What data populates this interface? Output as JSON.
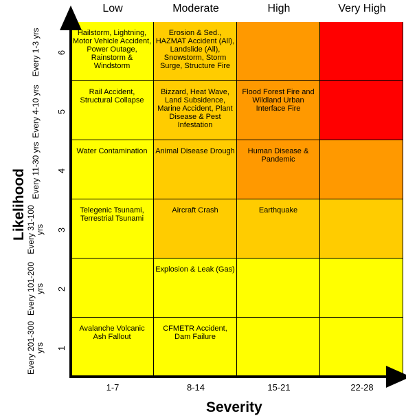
{
  "severity": {
    "title": "Severity",
    "levels": [
      "Low",
      "Moderate",
      "High",
      "Very High"
    ],
    "ranges": [
      "1-7",
      "8-14",
      "15-21",
      "22-28"
    ]
  },
  "likelihood": {
    "title": "Likelihood",
    "rows": [
      {
        "level": "6",
        "frequency": "Every 1-3 yrs"
      },
      {
        "level": "5",
        "frequency": "Every 4-10 yrs"
      },
      {
        "level": "4",
        "frequency": "Every 11-30 yrs"
      },
      {
        "level": "3",
        "frequency": "Every 31-100 yrs"
      },
      {
        "level": "2",
        "frequency": "Every 101-200 yrs"
      },
      {
        "level": "1",
        "frequency": "Every 201-300 yrs"
      }
    ]
  },
  "cells": [
    [
      "Hailstorm, Lightning, Motor Vehicle Accident, Power Outage, Rainstorm & Windstorm",
      "Erosion & Sed., HAZMAT Accident (All), Landslide (All), Snowstorm, Storm Surge, Structure Fire",
      "",
      ""
    ],
    [
      "Rail Accident, Structural Collapse",
      "Bizzard, Heat Wave, Land Subsidence, Marine Accident, Plant Disease & Pest Infestation",
      "Flood Forest Fire and Wildland Urban Interface Fire",
      ""
    ],
    [
      "Water Contamination",
      "Animal Disease Drough",
      "Human Disease & Pandemic",
      ""
    ],
    [
      "Telegenic Tsunami, Terrestrial Tsunami",
      "Aircraft Crash",
      "Earthquake",
      ""
    ],
    [
      "",
      "Explosion & Leak (Gas)",
      "",
      ""
    ],
    [
      "Avalanche Volcanic Ash Fallout",
      "CFMETR Accident, Dam Failure",
      "",
      ""
    ]
  ],
  "cell_colors": [
    [
      "#ffff00",
      "#ffcc00",
      "#ff9900",
      "#ff0000"
    ],
    [
      "#ffff00",
      "#ffcc00",
      "#ff9900",
      "#ff0000"
    ],
    [
      "#ffff00",
      "#ffcc00",
      "#ff9900",
      "#ff9900"
    ],
    [
      "#ffff00",
      "#ffcc00",
      "#ffcc00",
      "#ffcc00"
    ],
    [
      "#ffff00",
      "#ffff00",
      "#ffff00",
      "#ffff00"
    ],
    [
      "#ffff00",
      "#ffff00",
      "#ffff00",
      "#ffff00"
    ]
  ]
}
